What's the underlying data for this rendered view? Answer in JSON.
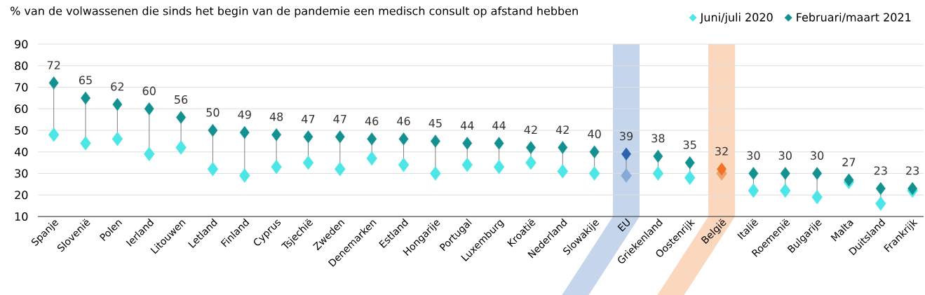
{
  "chart_data": {
    "type": "scatter",
    "title": "% van de volwassenen die sinds het begin van de pandemie een medisch consult op afstand hebben",
    "categories": [
      "Spanje",
      "Slovenië",
      "Polen",
      "Ierland",
      "Litouwen",
      "Letland",
      "Finland",
      "Cyprus",
      "Tsjechië",
      "Zweden",
      "Denemarken",
      "Estland",
      "Hongarije",
      "Portugal",
      "Luxemburg",
      "Kroatië",
      "Nederland",
      "Slowakije",
      "EU",
      "Griekenland",
      "Oostenrijk",
      "België",
      "Italië",
      "Roemenië",
      "Bulgarije",
      "Malta",
      "Duitsland",
      "Frankrijk"
    ],
    "series": [
      {
        "name": "Juni/juli 2020",
        "color": "#4ce6e6",
        "colors": [
          "#4ce6e6",
          "#4ce6e6",
          "#4ce6e6",
          "#4ce6e6",
          "#4ce6e6",
          "#4ce6e6",
          "#4ce6e6",
          "#4ce6e6",
          "#4ce6e6",
          "#4ce6e6",
          "#4ce6e6",
          "#4ce6e6",
          "#4ce6e6",
          "#4ce6e6",
          "#4ce6e6",
          "#4ce6e6",
          "#4ce6e6",
          "#4ce6e6",
          "#86a9d6",
          "#4ce6e6",
          "#4ce6e6",
          "#f0a06a",
          "#4ce6e6",
          "#4ce6e6",
          "#4ce6e6",
          "#4ce6e6",
          "#4ce6e6",
          "#4ce6e6"
        ],
        "values": [
          48,
          44,
          46,
          39,
          42,
          32,
          29,
          33,
          35,
          32,
          37,
          34,
          30,
          34,
          33,
          35,
          31,
          30,
          29,
          30,
          28,
          30,
          22,
          22,
          19,
          26,
          16,
          22
        ]
      },
      {
        "name": "Februari/maart 2021",
        "color": "#139191",
        "colors": [
          "#139191",
          "#139191",
          "#139191",
          "#139191",
          "#139191",
          "#139191",
          "#139191",
          "#139191",
          "#139191",
          "#139191",
          "#139191",
          "#139191",
          "#139191",
          "#139191",
          "#139191",
          "#139191",
          "#139191",
          "#139191",
          "#2a62b0",
          "#139191",
          "#139191",
          "#f07328",
          "#139191",
          "#139191",
          "#139191",
          "#139191",
          "#139191",
          "#139191"
        ],
        "values": [
          72,
          65,
          62,
          60,
          56,
          50,
          49,
          48,
          47,
          47,
          46,
          46,
          45,
          44,
          44,
          42,
          42,
          40,
          39,
          38,
          35,
          32,
          30,
          30,
          30,
          27,
          23,
          23
        ],
        "data_labels": true
      }
    ],
    "bands": [
      {
        "axis": "x",
        "from": "EU",
        "to": "EU",
        "color": "#c5d5eb"
      },
      {
        "axis": "x",
        "from": "België",
        "to": "België",
        "color": "#fad7bd"
      }
    ],
    "ylim": [
      10,
      90
    ],
    "yticks": [
      10,
      20,
      30,
      40,
      50,
      60,
      70,
      80,
      90
    ],
    "grid": "y",
    "legend": "top right",
    "marker": "diamond"
  }
}
